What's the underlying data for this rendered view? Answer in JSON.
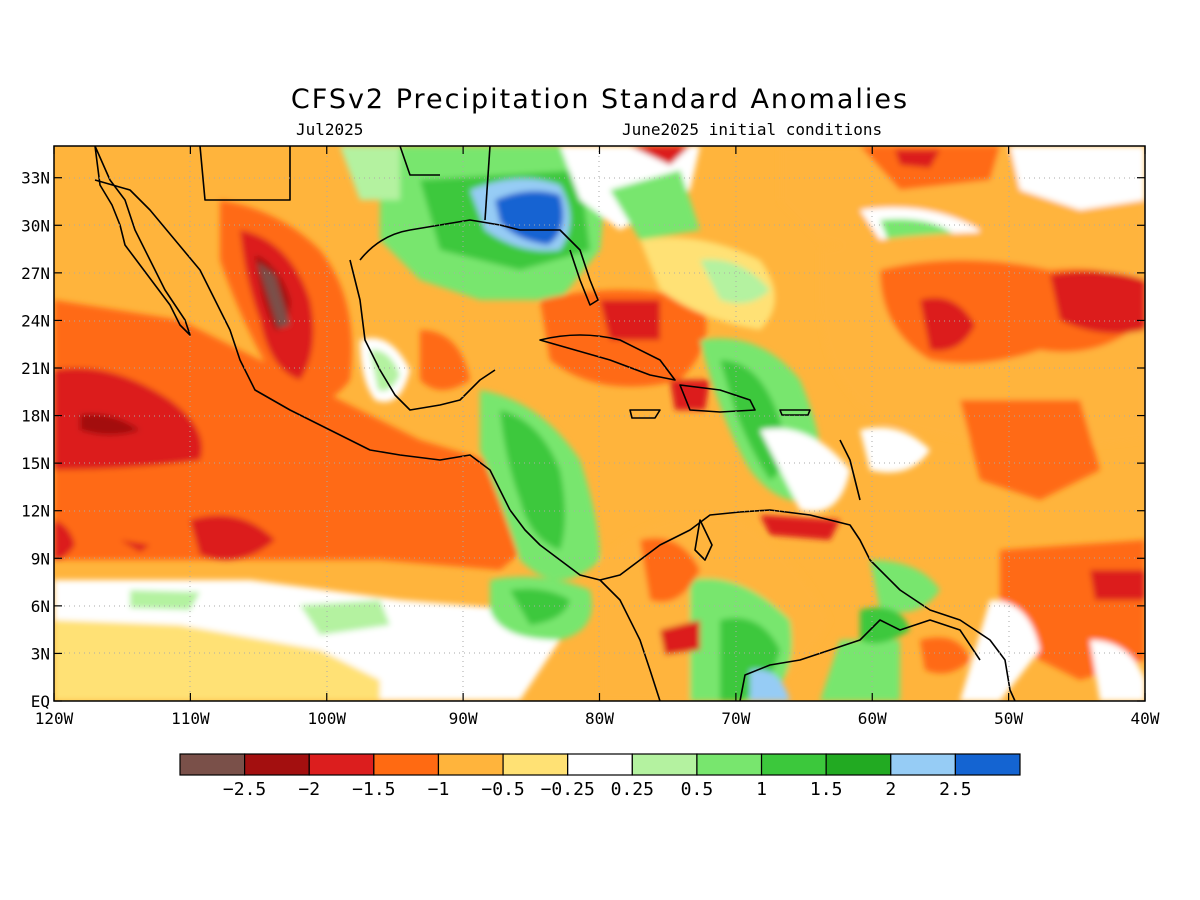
{
  "title": "CFSv2 Precipitation Standard Anomalies",
  "subtitle_left": "Jul2025",
  "subtitle_right": "June2025 initial conditions",
  "map": {
    "lon_range": [
      -120,
      -40
    ],
    "lat_range": [
      0,
      35
    ],
    "lat_ticks": [
      "EQ",
      "3N",
      "6N",
      "9N",
      "12N",
      "15N",
      "18N",
      "21N",
      "24N",
      "27N",
      "30N",
      "33N"
    ],
    "lon_ticks": [
      "120W",
      "110W",
      "100W",
      "90W",
      "80W",
      "70W",
      "60W",
      "50W",
      "40W"
    ],
    "grid": "dotted"
  },
  "colorbar": {
    "colors": [
      "#7a5049",
      "#a30f0f",
      "#dc1e1e",
      "#ff6a12",
      "#ffb43c",
      "#ffe174",
      "#ffffff",
      "#b4f2a0",
      "#78e66e",
      "#3cc83c",
      "#22aa22",
      "#96ccf5",
      "#1464d2"
    ],
    "labels": [
      "−2.5",
      "−2",
      "−1.5",
      "−1",
      "−0.5",
      "−0.25",
      "0.25",
      "0.5",
      "1",
      "1.5",
      "2",
      "2.5"
    ]
  }
}
